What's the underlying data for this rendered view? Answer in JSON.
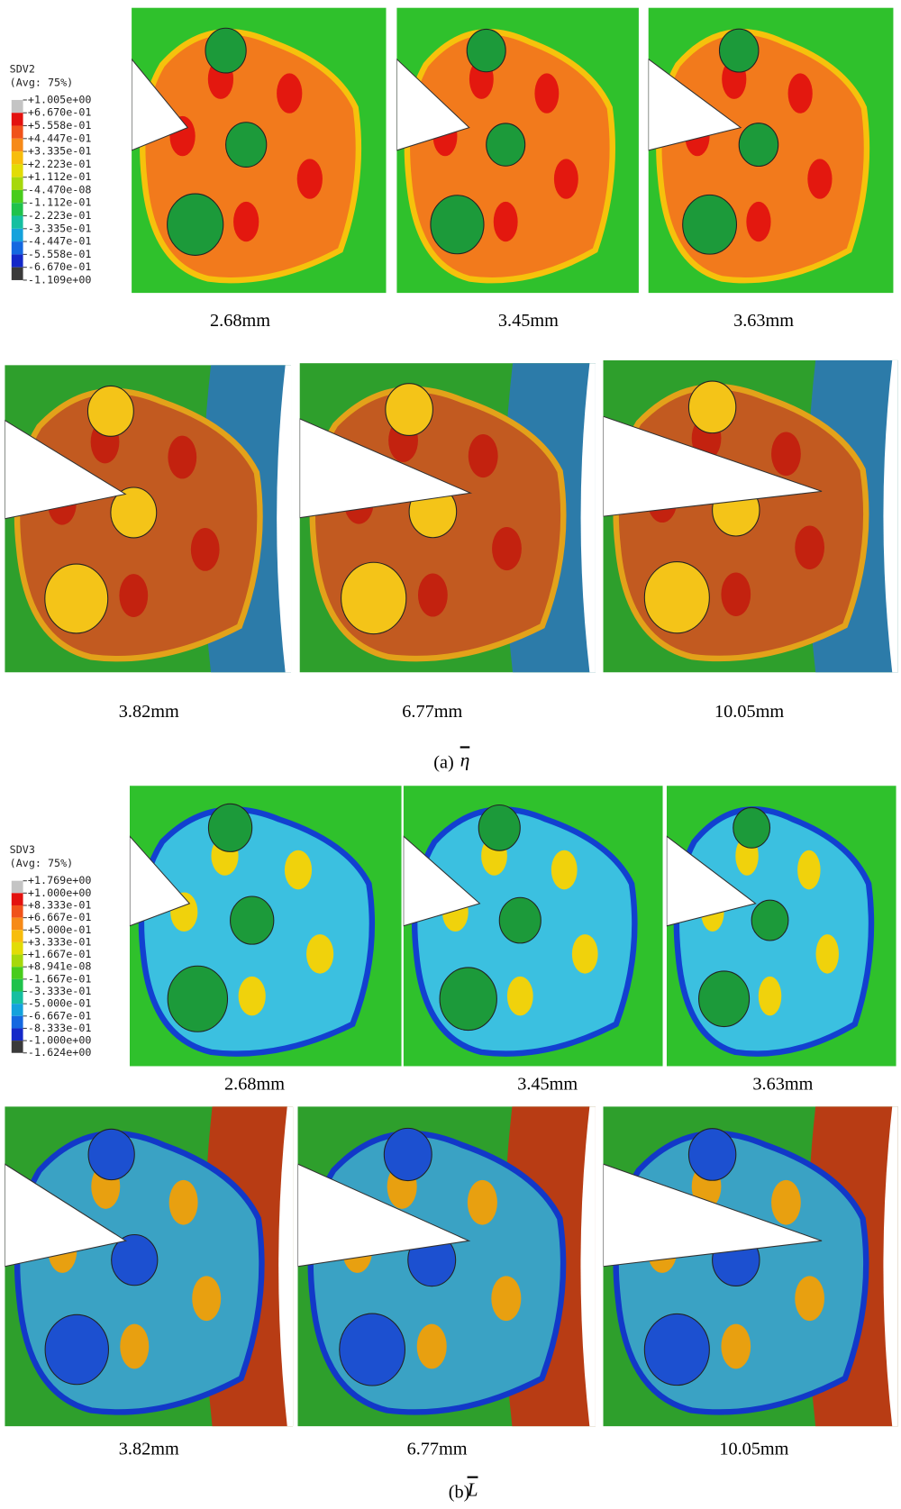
{
  "part_a": {
    "legend": {
      "title": "SDV2",
      "subtitle": "(Avg: 75%)",
      "labels": [
        "+1.005e+00",
        "+6.670e-01",
        "+5.558e-01",
        "+4.447e-01",
        "+3.335e-01",
        "+2.223e-01",
        "+1.112e-01",
        "-4.470e-08",
        "-1.112e-01",
        "-2.223e-01",
        "-3.335e-01",
        "-4.447e-01",
        "-5.558e-01",
        "-6.670e-01",
        "-1.109e+00"
      ],
      "colors": [
        "#c4c4c4",
        "#e3120f",
        "#f0521a",
        "#f68a18",
        "#f7bd0c",
        "#e2dc06",
        "#a6d80c",
        "#48cc1c",
        "#1fc24c",
        "#15bfa0",
        "#14a2dc",
        "#1468e0",
        "#1428c8",
        "#3a3a3a"
      ]
    },
    "captions_row1": [
      "2.68mm",
      "3.45mm",
      "3.63mm"
    ],
    "captions_row2": [
      "3.82mm",
      "6.77mm",
      "10.05mm"
    ],
    "caption": "(a)",
    "symbol": "η"
  },
  "part_b": {
    "legend": {
      "title": "SDV3",
      "subtitle": "(Avg: 75%)",
      "labels": [
        "+1.769e+00",
        "+1.000e+00",
        "+8.333e-01",
        "+6.667e-01",
        "+5.000e-01",
        "+3.333e-01",
        "+1.667e-01",
        "+8.941e-08",
        "-1.667e-01",
        "-3.333e-01",
        "-5.000e-01",
        "-6.667e-01",
        "-8.333e-01",
        "-1.000e+00",
        "-1.624e+00"
      ],
      "colors": [
        "#c4c4c4",
        "#e3120f",
        "#f0521a",
        "#f68a18",
        "#f7bd0c",
        "#e2dc06",
        "#a6d80c",
        "#48cc1c",
        "#1fc24c",
        "#15bfa0",
        "#14a2dc",
        "#1468e0",
        "#1428c8",
        "#3a3a3a"
      ]
    },
    "captions_row1": [
      "2.68mm",
      "3.45mm",
      "3.63mm"
    ],
    "captions_row2": [
      "3.82mm",
      "6.77mm",
      "10.05mm"
    ],
    "caption": "(b)",
    "symbol": "L"
  }
}
